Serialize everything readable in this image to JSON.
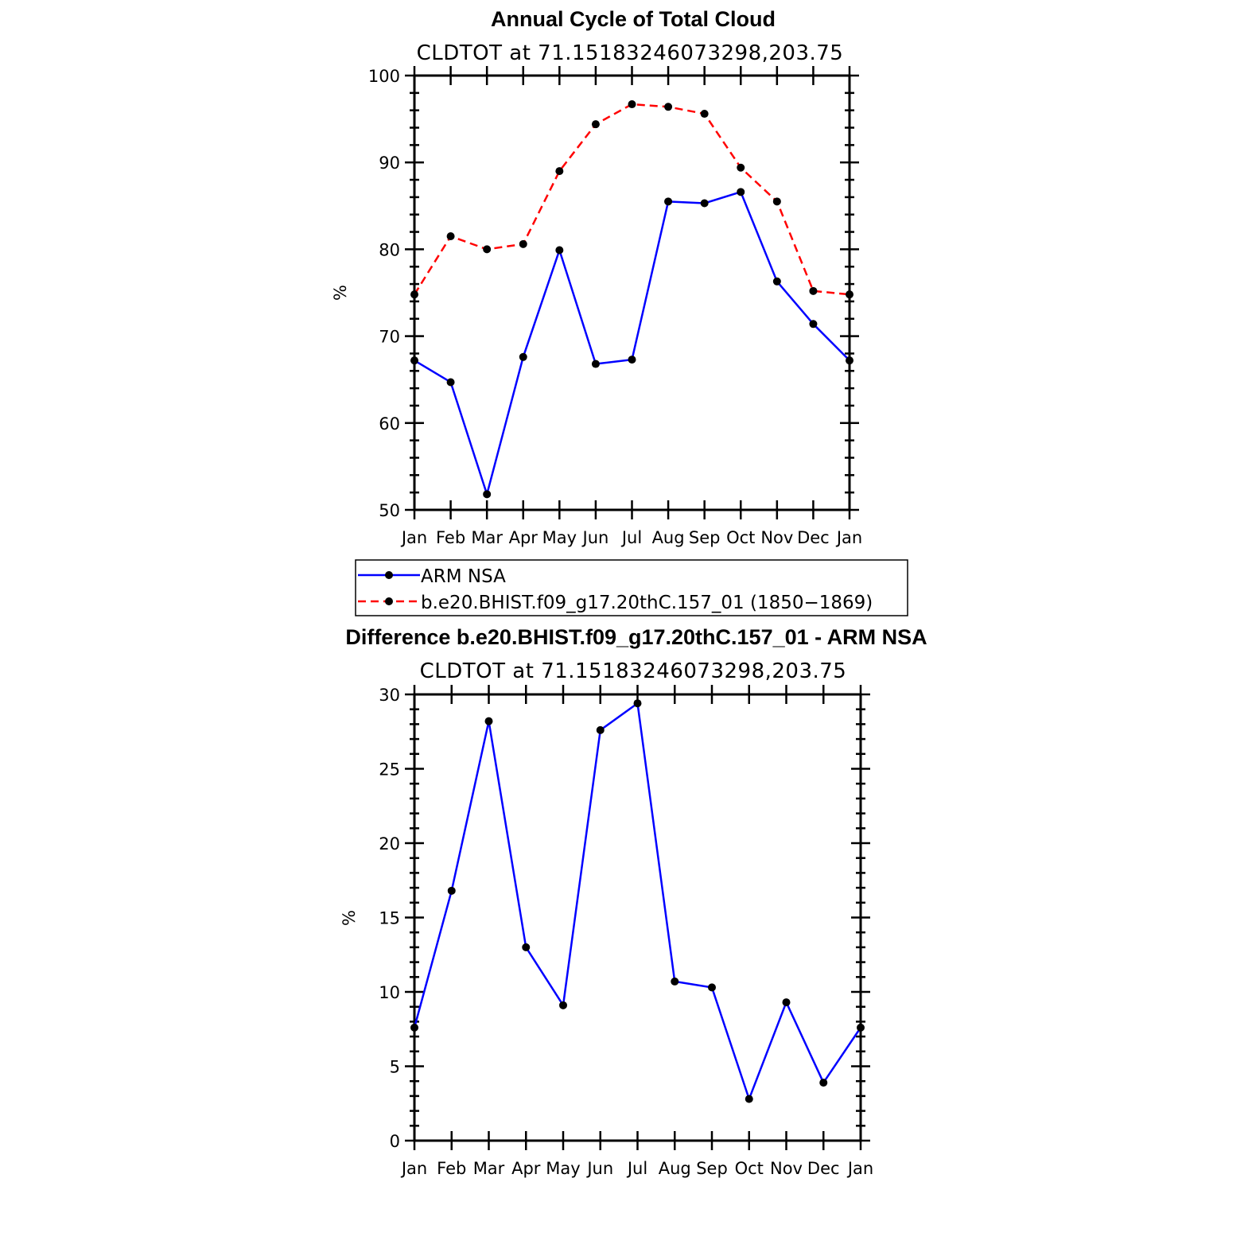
{
  "figure": {
    "title": "Annual Cycle of Total Cloud",
    "subtitle": "CLDTOT at 71.15183246073298,203.75",
    "legend": [
      {
        "label": "ARM NSA",
        "color": "#0000ff",
        "dash": "solid"
      },
      {
        "label": "b.e20.BHIST.f09_g17.20thC.157_01 (1850−1869)",
        "color": "#ff0000",
        "dash": "dashed"
      }
    ],
    "diff_title": "Difference b.e20.BHIST.f09_g17.20thC.157_01 - ARM NSA",
    "diff_subtitle": "CLDTOT at 71.15183246073298,203.75"
  },
  "chart_data": [
    {
      "type": "line",
      "title": "Annual Cycle of Total Cloud",
      "subtitle": "CLDTOT at 71.15183246073298,203.75",
      "xlabel": "",
      "ylabel": "%",
      "categories": [
        "Jan",
        "Feb",
        "Mar",
        "Apr",
        "May",
        "Jun",
        "Jul",
        "Aug",
        "Sep",
        "Oct",
        "Nov",
        "Dec",
        "Jan"
      ],
      "ylim": [
        50,
        100
      ],
      "yticks": [
        50,
        60,
        70,
        80,
        90,
        100
      ],
      "series": [
        {
          "name": "ARM NSA",
          "color": "#0000ff",
          "dash": "solid",
          "values": [
            67.2,
            64.7,
            51.8,
            67.6,
            79.9,
            66.8,
            67.3,
            85.5,
            85.3,
            86.6,
            76.3,
            71.4,
            67.2
          ]
        },
        {
          "name": "b.e20.BHIST.f09_g17.20thC.157_01 (1850−1869)",
          "color": "#ff0000",
          "dash": "dashed",
          "values": [
            74.8,
            81.5,
            80.0,
            80.6,
            89.0,
            94.4,
            96.7,
            96.4,
            95.6,
            89.4,
            85.5,
            75.2,
            74.8
          ]
        }
      ]
    },
    {
      "type": "line",
      "title": "Difference b.e20.BHIST.f09_g17.20thC.157_01 - ARM NSA",
      "subtitle": "CLDTOT at 71.15183246073298,203.75",
      "xlabel": "",
      "ylabel": "%",
      "categories": [
        "Jan",
        "Feb",
        "Mar",
        "Apr",
        "May",
        "Jun",
        "Jul",
        "Aug",
        "Sep",
        "Oct",
        "Nov",
        "Dec",
        "Jan"
      ],
      "ylim": [
        0,
        30
      ],
      "yticks": [
        0,
        5,
        10,
        15,
        20,
        25,
        30
      ],
      "series": [
        {
          "color": "#0000ff",
          "dash": "solid",
          "values": [
            7.6,
            16.8,
            28.2,
            13.0,
            9.1,
            27.6,
            29.4,
            10.7,
            10.3,
            2.8,
            9.3,
            3.9,
            7.6
          ]
        }
      ]
    }
  ]
}
